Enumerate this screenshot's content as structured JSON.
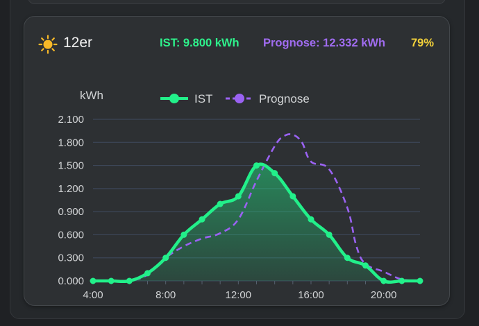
{
  "card": {
    "title": "12er",
    "ist_text": "IST: 9.800 kWh",
    "prognose_text": "Prognose: 12.332 kWh",
    "percent_text": "79%",
    "icon": "sun-icon"
  },
  "colors": {
    "ist": "#22f08a",
    "prognose": "#9a62f2",
    "percent": "#f4d23a",
    "background": "#2d3033"
  },
  "chart_data": {
    "type": "line",
    "ylabel": "kWh",
    "y_ticks": [
      "0.000",
      "0.300",
      "0.600",
      "0.900",
      "1.200",
      "1.500",
      "1.800",
      "2.100"
    ],
    "x_ticks": [
      "4:00",
      "8:00",
      "12:00",
      "16:00",
      "20:00"
    ],
    "ylim": [
      0,
      2.1
    ],
    "xlim": [
      4,
      22
    ],
    "grid": true,
    "legend_position": "top-center",
    "series": [
      {
        "name": "IST",
        "style": "solid",
        "fill": true,
        "markers": true,
        "x": [
          4,
          5,
          6,
          7,
          8,
          9,
          10,
          11,
          12,
          13,
          14,
          15,
          16,
          17,
          18,
          19,
          20,
          21,
          22
        ],
        "y": [
          0.0,
          0.0,
          0.0,
          0.1,
          0.3,
          0.6,
          0.8,
          1.0,
          1.1,
          1.5,
          1.4,
          1.1,
          0.8,
          0.6,
          0.3,
          0.2,
          0.0,
          0.0,
          0.0
        ]
      },
      {
        "name": "Prognose",
        "style": "dashed",
        "fill": false,
        "markers": false,
        "x": [
          4,
          5,
          6,
          7,
          8,
          9,
          10,
          11,
          12,
          13,
          14,
          14.5,
          15,
          15.5,
          16,
          17,
          18,
          18.5,
          19,
          20,
          21,
          22
        ],
        "y": [
          0.0,
          0.0,
          0.0,
          0.08,
          0.3,
          0.45,
          0.55,
          0.62,
          0.8,
          1.3,
          1.75,
          1.88,
          1.9,
          1.8,
          1.55,
          1.45,
          0.95,
          0.45,
          0.22,
          0.12,
          0.02,
          0.0
        ]
      }
    ]
  }
}
